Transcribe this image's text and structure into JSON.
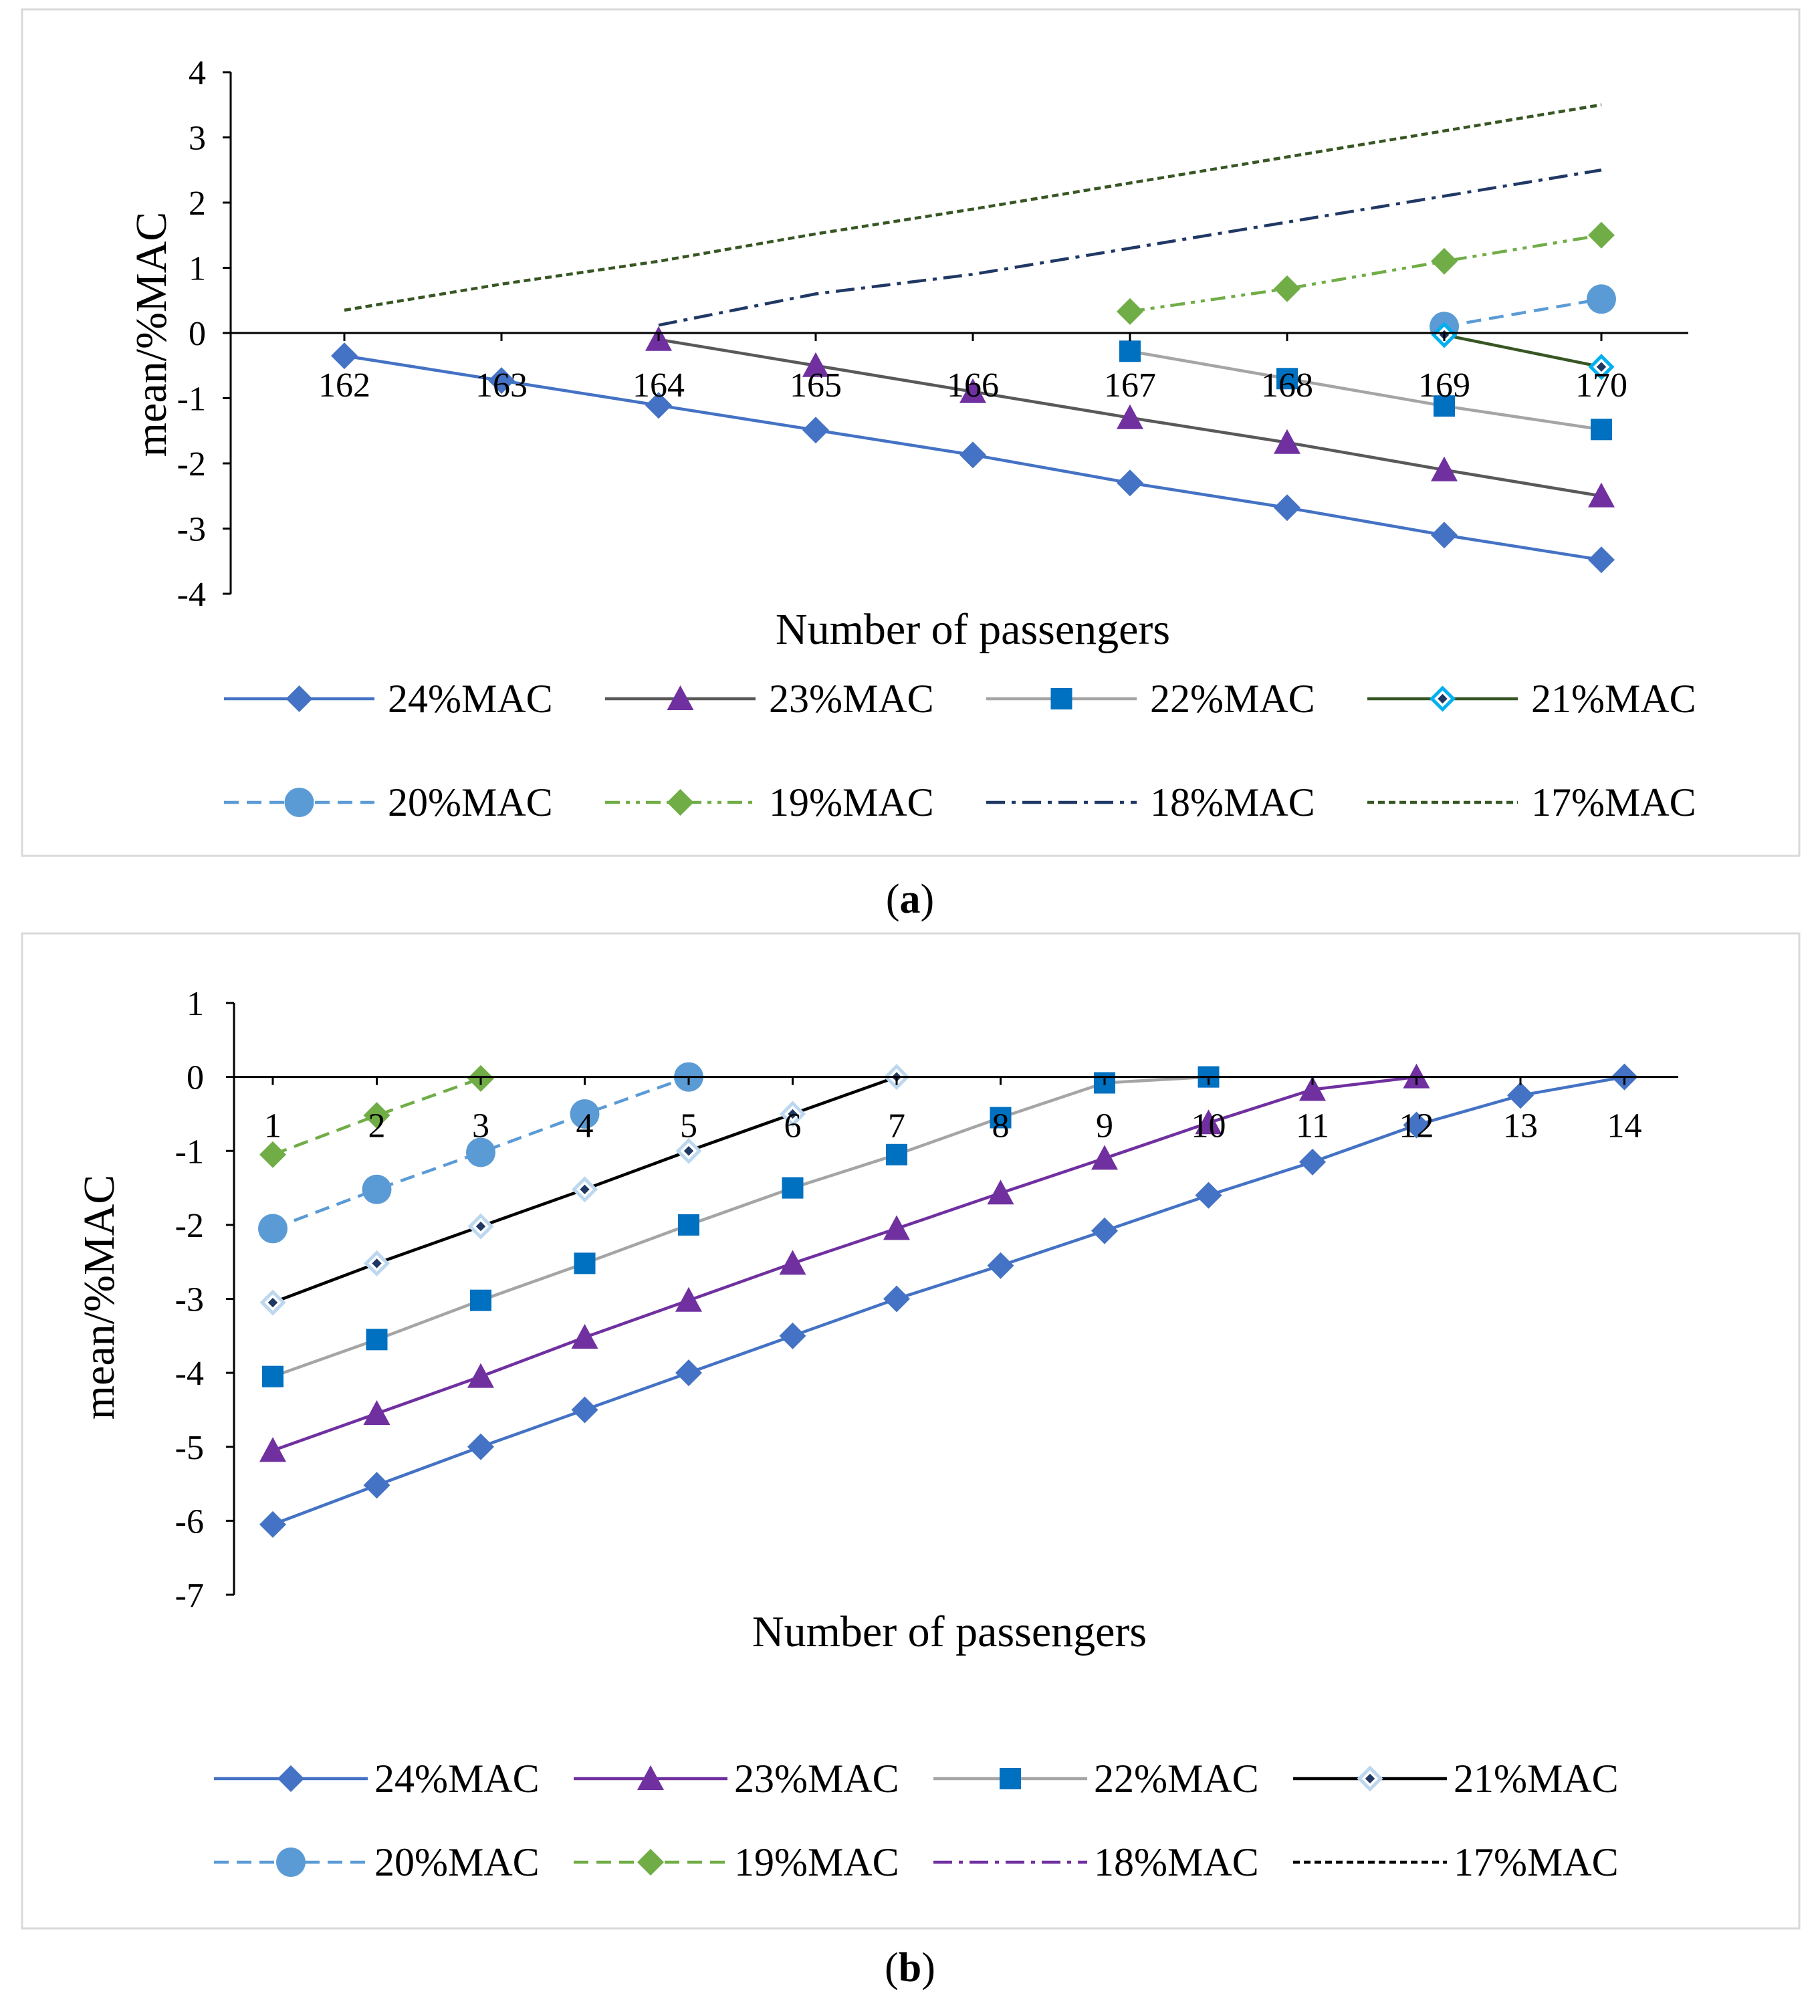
{
  "chart_data": [
    {
      "panel_label": "a",
      "type": "line",
      "title": "",
      "xlabel": "Number of passengers",
      "ylabel": "mean/%MAC",
      "x": [
        162,
        163,
        164,
        165,
        166,
        167,
        168,
        169,
        170
      ],
      "x_tick_labels": [
        "162",
        "163",
        "164",
        "165",
        "166",
        "167",
        "168",
        "169",
        "170"
      ],
      "ylim": [
        -4,
        4
      ],
      "y_ticks": [
        4,
        3,
        2,
        1,
        0,
        -1,
        -2,
        -3,
        -4
      ],
      "y_tick_labels": [
        "4",
        "3",
        "2",
        "1",
        "0",
        "-1",
        "-2",
        "-3",
        "-4"
      ],
      "legend_position": "bottom",
      "series": [
        {
          "name": "24%MAC",
          "color": "#4472C4",
          "dash": "solid",
          "marker": "diamond",
          "points": [
            [
              162,
              -0.35
            ],
            [
              163,
              -0.73
            ],
            [
              164,
              -1.11
            ],
            [
              165,
              -1.49
            ],
            [
              166,
              -1.87
            ],
            [
              167,
              -2.3
            ],
            [
              168,
              -2.68
            ],
            [
              169,
              -3.1
            ],
            [
              170,
              -3.48
            ]
          ]
        },
        {
          "name": "23%MAC",
          "color": "#595959",
          "marker_color": "#7030A0",
          "dash": "solid",
          "marker": "triangle",
          "points": [
            [
              164,
              -0.1
            ],
            [
              165,
              -0.5
            ],
            [
              166,
              -0.9
            ],
            [
              167,
              -1.3
            ],
            [
              168,
              -1.68
            ],
            [
              169,
              -2.1
            ],
            [
              170,
              -2.5
            ]
          ]
        },
        {
          "name": "22%MAC",
          "color": "#A5A5A5",
          "marker_color": "#0070C0",
          "dash": "solid",
          "marker": "square",
          "points": [
            [
              167,
              -0.28
            ],
            [
              168,
              -0.7
            ],
            [
              169,
              -1.12
            ],
            [
              170,
              -1.48
            ]
          ]
        },
        {
          "name": "21%MAC",
          "color": "#375623",
          "marker_color": "#00B0F0",
          "marker_inner": "#1F3864",
          "dash": "solid",
          "marker": "diamond-small",
          "points": [
            [
              169,
              -0.03
            ],
            [
              170,
              -0.52
            ]
          ]
        },
        {
          "name": "20%MAC",
          "color": "#5B9BD5",
          "dash": "dashed",
          "marker": "circle",
          "points": [
            [
              169,
              0.1
            ],
            [
              170,
              0.52
            ]
          ]
        },
        {
          "name": "19%MAC",
          "color": "#70AD47",
          "dash": "dash-dot-dot",
          "marker": "diamond",
          "points": [
            [
              167,
              0.33
            ],
            [
              168,
              0.68
            ],
            [
              169,
              1.1
            ],
            [
              170,
              1.5
            ]
          ]
        },
        {
          "name": "18%MAC",
          "color": "#203864",
          "dash": "dash-dot",
          "marker": "none",
          "points": [
            [
              164,
              0.12
            ],
            [
              165,
              0.6
            ],
            [
              166,
              0.9
            ],
            [
              167,
              1.3
            ],
            [
              168,
              1.7
            ],
            [
              169,
              2.1
            ],
            [
              170,
              2.5
            ]
          ]
        },
        {
          "name": "17%MAC",
          "color": "#375623",
          "dash": "dotted",
          "marker": "none",
          "points": [
            [
              162,
              0.35
            ],
            [
              163,
              0.75
            ],
            [
              164,
              1.1
            ],
            [
              165,
              1.52
            ],
            [
              166,
              1.9
            ],
            [
              167,
              2.3
            ],
            [
              168,
              2.7
            ],
            [
              169,
              3.1
            ],
            [
              170,
              3.5
            ]
          ]
        }
      ]
    },
    {
      "panel_label": "b",
      "type": "line",
      "title": "",
      "xlabel": "Number of passengers",
      "ylabel": "mean/%MAC",
      "x": [
        1,
        2,
        3,
        4,
        5,
        6,
        7,
        8,
        9,
        10,
        11,
        12,
        13,
        14
      ],
      "x_tick_labels": [
        "1",
        "2",
        "3",
        "4",
        "5",
        "6",
        "7",
        "8",
        "9",
        "10",
        "11",
        "12",
        "13",
        "14"
      ],
      "ylim": [
        -7,
        1
      ],
      "y_ticks": [
        1,
        0,
        -1,
        -2,
        -3,
        -4,
        -5,
        -6,
        -7
      ],
      "y_tick_labels": [
        "1",
        "0",
        "-1",
        "-2",
        "-3",
        "-4",
        "-5",
        "-6",
        "-7"
      ],
      "legend_position": "bottom",
      "series": [
        {
          "name": "24%MAC",
          "color": "#4472C4",
          "dash": "solid",
          "marker": "diamond",
          "points": [
            [
              1,
              -6.05
            ],
            [
              2,
              -5.52
            ],
            [
              3,
              -5.0
            ],
            [
              4,
              -4.5
            ],
            [
              5,
              -4.0
            ],
            [
              6,
              -3.5
            ],
            [
              7,
              -3.0
            ],
            [
              8,
              -2.55
            ],
            [
              9,
              -2.08
            ],
            [
              10,
              -1.6
            ],
            [
              11,
              -1.15
            ],
            [
              12,
              -0.65
            ],
            [
              13,
              -0.25
            ],
            [
              14,
              0.0
            ]
          ]
        },
        {
          "name": "23%MAC",
          "color": "#7030A0",
          "dash": "solid",
          "marker": "triangle",
          "points": [
            [
              1,
              -5.05
            ],
            [
              2,
              -4.55
            ],
            [
              3,
              -4.05
            ],
            [
              4,
              -3.52
            ],
            [
              5,
              -3.02
            ],
            [
              6,
              -2.52
            ],
            [
              7,
              -2.05
            ],
            [
              8,
              -1.57
            ],
            [
              9,
              -1.1
            ],
            [
              10,
              -0.62
            ],
            [
              11,
              -0.17
            ],
            [
              12,
              0.0
            ]
          ]
        },
        {
          "name": "22%MAC",
          "color": "#A5A5A5",
          "marker_color": "#0070C0",
          "dash": "solid",
          "marker": "square",
          "points": [
            [
              1,
              -4.05
            ],
            [
              2,
              -3.55
            ],
            [
              3,
              -3.02
            ],
            [
              4,
              -2.52
            ],
            [
              5,
              -2.0
            ],
            [
              6,
              -1.5
            ],
            [
              7,
              -1.05
            ],
            [
              8,
              -0.55
            ],
            [
              9,
              -0.08
            ],
            [
              10,
              0.0
            ]
          ]
        },
        {
          "name": "21%MAC",
          "color": "#000000",
          "marker_color": "#BDD7EE",
          "marker_inner": "#1F3864",
          "dash": "solid",
          "marker": "diamond-small",
          "points": [
            [
              1,
              -3.05
            ],
            [
              2,
              -2.52
            ],
            [
              3,
              -2.02
            ],
            [
              4,
              -1.52
            ],
            [
              5,
              -1.0
            ],
            [
              6,
              -0.5
            ],
            [
              7,
              0.0
            ]
          ]
        },
        {
          "name": "20%MAC",
          "color": "#5B9BD5",
          "dash": "dashed",
          "marker": "circle",
          "points": [
            [
              1,
              -2.05
            ],
            [
              2,
              -1.52
            ],
            [
              3,
              -1.02
            ],
            [
              4,
              -0.5
            ],
            [
              5,
              0.0
            ]
          ]
        },
        {
          "name": "19%MAC",
          "color": "#70AD47",
          "dash": "dashed",
          "marker": "diamond",
          "points": [
            [
              1,
              -1.05
            ],
            [
              2,
              -0.52
            ],
            [
              3,
              -0.02
            ]
          ]
        },
        {
          "name": "18%MAC",
          "color": "#7030A0",
          "dash": "dash-dot",
          "marker": "none",
          "points": []
        },
        {
          "name": "17%MAC",
          "color": "#000000",
          "dash": "dotted",
          "marker": "none",
          "points": []
        }
      ]
    }
  ]
}
